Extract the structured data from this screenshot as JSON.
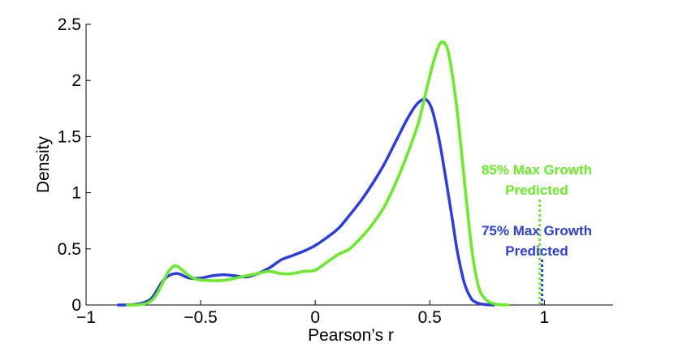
{
  "chart_data": {
    "type": "line",
    "xlabel": "Pearson’s r",
    "ylabel": "Density",
    "xlim": [
      -1,
      1.3
    ],
    "ylim": [
      0,
      2.5
    ],
    "x_ticks": [
      -1,
      -0.5,
      0,
      0.5,
      1
    ],
    "x_tick_labels": [
      "−1",
      "−0.5",
      "0",
      "0.5",
      "1"
    ],
    "y_ticks": [
      0,
      0.5,
      1,
      1.5,
      2,
      2.5
    ],
    "y_tick_labels": [
      "0",
      "0.5",
      "1",
      "1.5",
      "2",
      "2.5"
    ],
    "grid": false,
    "series": [
      {
        "color": "#2a3de8",
        "x": [
          -0.86,
          -0.8,
          -0.75,
          -0.72,
          -0.7,
          -0.67,
          -0.64,
          -0.6,
          -0.55,
          -0.5,
          -0.45,
          -0.4,
          -0.35,
          -0.3,
          -0.25,
          -0.2,
          -0.15,
          -0.1,
          -0.05,
          0.0,
          0.05,
          0.1,
          0.15,
          0.2,
          0.25,
          0.3,
          0.35,
          0.4,
          0.44,
          0.47,
          0.49,
          0.51,
          0.53,
          0.55,
          0.58,
          0.6,
          0.62,
          0.65,
          0.68,
          0.7,
          0.72,
          0.75,
          0.78
        ],
        "y": [
          0,
          0.003,
          0.02,
          0.05,
          0.1,
          0.2,
          0.26,
          0.28,
          0.24,
          0.24,
          0.26,
          0.27,
          0.26,
          0.25,
          0.28,
          0.33,
          0.4,
          0.44,
          0.48,
          0.53,
          0.6,
          0.68,
          0.8,
          0.93,
          1.08,
          1.25,
          1.45,
          1.65,
          1.78,
          1.83,
          1.82,
          1.74,
          1.58,
          1.37,
          1.0,
          0.74,
          0.48,
          0.2,
          0.06,
          0.025,
          0.01,
          0.003,
          0
        ]
      },
      {
        "color": "#66ee22",
        "x": [
          -0.82,
          -0.77,
          -0.73,
          -0.7,
          -0.67,
          -0.64,
          -0.61,
          -0.58,
          -0.55,
          -0.52,
          -0.48,
          -0.4,
          -0.3,
          -0.25,
          -0.2,
          -0.15,
          -0.1,
          -0.05,
          0.0,
          0.05,
          0.1,
          0.15,
          0.2,
          0.25,
          0.3,
          0.35,
          0.4,
          0.45,
          0.48,
          0.51,
          0.54,
          0.56,
          0.58,
          0.6,
          0.62,
          0.64,
          0.66,
          0.68,
          0.7,
          0.72,
          0.75,
          0.78,
          0.81,
          0.84
        ],
        "y": [
          0,
          0.003,
          0.02,
          0.07,
          0.18,
          0.3,
          0.35,
          0.31,
          0.26,
          0.23,
          0.22,
          0.22,
          0.26,
          0.28,
          0.3,
          0.28,
          0.28,
          0.3,
          0.31,
          0.38,
          0.45,
          0.5,
          0.6,
          0.72,
          0.87,
          1.08,
          1.33,
          1.62,
          1.87,
          2.12,
          2.31,
          2.34,
          2.26,
          2.03,
          1.72,
          1.33,
          0.93,
          0.55,
          0.28,
          0.12,
          0.04,
          0.012,
          0.003,
          0
        ]
      }
    ],
    "markers": [
      {
        "x": 0.98,
        "color": "#66ee22",
        "label_lines": [
          "85% Max Growth",
          "Predicted"
        ]
      },
      {
        "x": 0.99,
        "color": "#2a3de8",
        "label_lines": [
          "75% Max Growth",
          "Predicted"
        ]
      }
    ]
  }
}
